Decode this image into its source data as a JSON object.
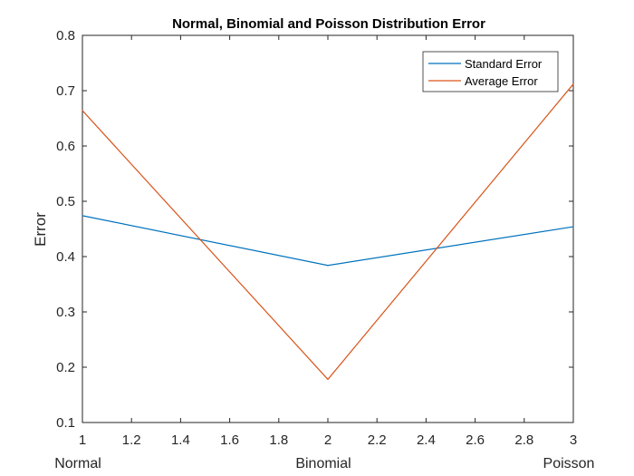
{
  "chart_data": {
    "type": "line",
    "title": "Normal, Binomial and Poisson Distribution Error",
    "xlabel": "",
    "ylabel": "Error",
    "xlim": [
      1,
      3
    ],
    "ylim": [
      0.1,
      0.8
    ],
    "x_ticks": [
      "1",
      "1.2",
      "1.4",
      "1.6",
      "1.8",
      "2",
      "2.2",
      "2.4",
      "2.6",
      "2.8",
      "3"
    ],
    "y_ticks": [
      "0.1",
      "0.2",
      "0.3",
      "0.4",
      "0.5",
      "0.6",
      "0.7",
      "0.8"
    ],
    "categories": [
      "Normal",
      "Binomial",
      "Poisson"
    ],
    "x": [
      1,
      2,
      3
    ],
    "series": [
      {
        "name": "Standard Error",
        "values": [
          0.474,
          0.384,
          0.454
        ],
        "color": "#0072BD"
      },
      {
        "name": "Average Error",
        "values": [
          0.664,
          0.178,
          0.712
        ],
        "color": "#D95319"
      }
    ],
    "legend_position": "top-right",
    "grid": false
  }
}
